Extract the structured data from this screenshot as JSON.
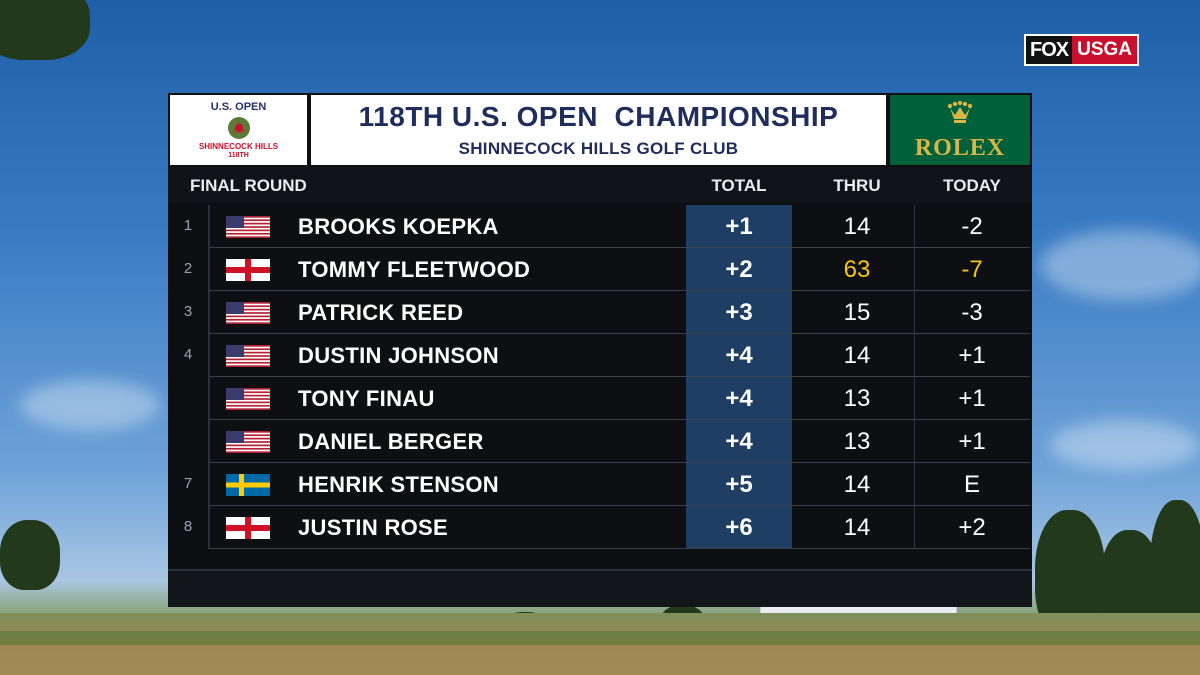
{
  "broadcast": {
    "network": "FOX",
    "partner": "USGA"
  },
  "event_logo": {
    "line1": "U.S. OPEN",
    "line2": "SHINNECOCK HILLS",
    "line3": "118TH"
  },
  "header": {
    "title": "118TH U.S. OPEN  CHAMPIONSHIP",
    "subtitle": "SHINNECOCK HILLS GOLF CLUB"
  },
  "sponsor": {
    "name": "ROLEX",
    "color": "#006039",
    "text_color": "#d9b64a",
    "icon": "crown-icon"
  },
  "columns": {
    "round": "FINAL ROUND",
    "total": "TOTAL",
    "thru": "THRU",
    "today": "TODAY"
  },
  "colors": {
    "total_bg": "#1f3e64",
    "highlight": "#f5c518",
    "title": "#1f2d5c"
  },
  "players": [
    {
      "pos": "1",
      "flag": "USA",
      "name": "BROOKS KOEPKA",
      "total": "+1",
      "thru": "14",
      "today": "-2",
      "highlight": false
    },
    {
      "pos": "2",
      "flag": "ENG",
      "name": "TOMMY FLEETWOOD",
      "total": "+2",
      "thru": "63",
      "today": "-7",
      "highlight": true
    },
    {
      "pos": "3",
      "flag": "USA",
      "name": "PATRICK REED",
      "total": "+3",
      "thru": "15",
      "today": "-3",
      "highlight": false
    },
    {
      "pos": "4",
      "flag": "USA",
      "name": "DUSTIN JOHNSON",
      "total": "+4",
      "thru": "14",
      "today": "+1",
      "highlight": false
    },
    {
      "pos": "",
      "flag": "USA",
      "name": "TONY FINAU",
      "total": "+4",
      "thru": "13",
      "today": "+1",
      "highlight": false
    },
    {
      "pos": "",
      "flag": "USA",
      "name": "DANIEL BERGER",
      "total": "+4",
      "thru": "13",
      "today": "+1",
      "highlight": false
    },
    {
      "pos": "7",
      "flag": "SWE",
      "name": "HENRIK STENSON",
      "total": "+5",
      "thru": "14",
      "today": "E",
      "highlight": false
    },
    {
      "pos": "8",
      "flag": "ENG",
      "name": "JUSTIN ROSE",
      "total": "+6",
      "thru": "14",
      "today": "+2",
      "highlight": false
    }
  ]
}
